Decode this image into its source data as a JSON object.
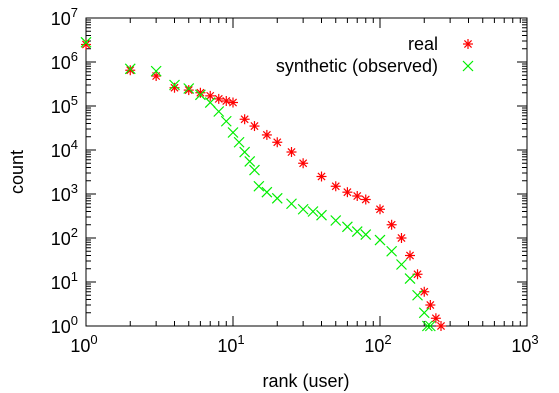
{
  "chart_data": {
    "type": "scatter",
    "title": "",
    "xlabel": "rank (user)",
    "ylabel": "count",
    "x_scale": "log",
    "y_scale": "log",
    "xlim": [
      1,
      1000
    ],
    "ylim": [
      1,
      10000000
    ],
    "grid": false,
    "legend_position": "top-right",
    "x_ticks": [
      {
        "value": 1,
        "base": "10",
        "exp": "0"
      },
      {
        "value": 10,
        "base": "10",
        "exp": "1"
      },
      {
        "value": 100,
        "base": "10",
        "exp": "2"
      },
      {
        "value": 1000,
        "base": "10",
        "exp": "3"
      }
    ],
    "y_ticks": [
      {
        "value": 1,
        "base": "10",
        "exp": "0"
      },
      {
        "value": 10,
        "base": "10",
        "exp": "1"
      },
      {
        "value": 100,
        "base": "10",
        "exp": "2"
      },
      {
        "value": 1000,
        "base": "10",
        "exp": "3"
      },
      {
        "value": 10000,
        "base": "10",
        "exp": "4"
      },
      {
        "value": 100000,
        "base": "10",
        "exp": "5"
      },
      {
        "value": 1000000,
        "base": "10",
        "exp": "6"
      },
      {
        "value": 10000000,
        "base": "10",
        "exp": "7"
      }
    ],
    "series": [
      {
        "name": "real",
        "color": "#ff0000",
        "marker": "asterisk",
        "x": [
          1,
          2,
          3,
          4,
          5,
          6,
          7,
          8,
          9,
          10,
          12,
          14,
          17,
          20,
          25,
          30,
          40,
          50,
          60,
          70,
          80,
          100,
          120,
          140,
          160,
          180,
          200,
          220,
          240,
          260
        ],
        "y": [
          2500000,
          650000,
          480000,
          260000,
          230000,
          200000,
          170000,
          145000,
          130000,
          120000,
          50000,
          35000,
          22000,
          15000,
          9000,
          5000,
          2500,
          1500,
          1100,
          900,
          750,
          450,
          200,
          100,
          40,
          15,
          6,
          3,
          1.5,
          1
        ]
      },
      {
        "name": "synthetic (observed)",
        "color": "#00ee00",
        "marker": "cross",
        "x": [
          1,
          2,
          3,
          4,
          5,
          6,
          7,
          8,
          9,
          10,
          11,
          12,
          13,
          14,
          15,
          17,
          20,
          25,
          30,
          35,
          40,
          50,
          60,
          70,
          80,
          100,
          120,
          140,
          160,
          180,
          200,
          210,
          220
        ],
        "y": [
          2800000,
          700000,
          620000,
          300000,
          250000,
          180000,
          120000,
          75000,
          45000,
          25000,
          15000,
          9000,
          5500,
          3500,
          1500,
          1100,
          800,
          600,
          450,
          400,
          330,
          250,
          180,
          140,
          120,
          90,
          50,
          25,
          12,
          5,
          2,
          1,
          1
        ]
      }
    ]
  }
}
